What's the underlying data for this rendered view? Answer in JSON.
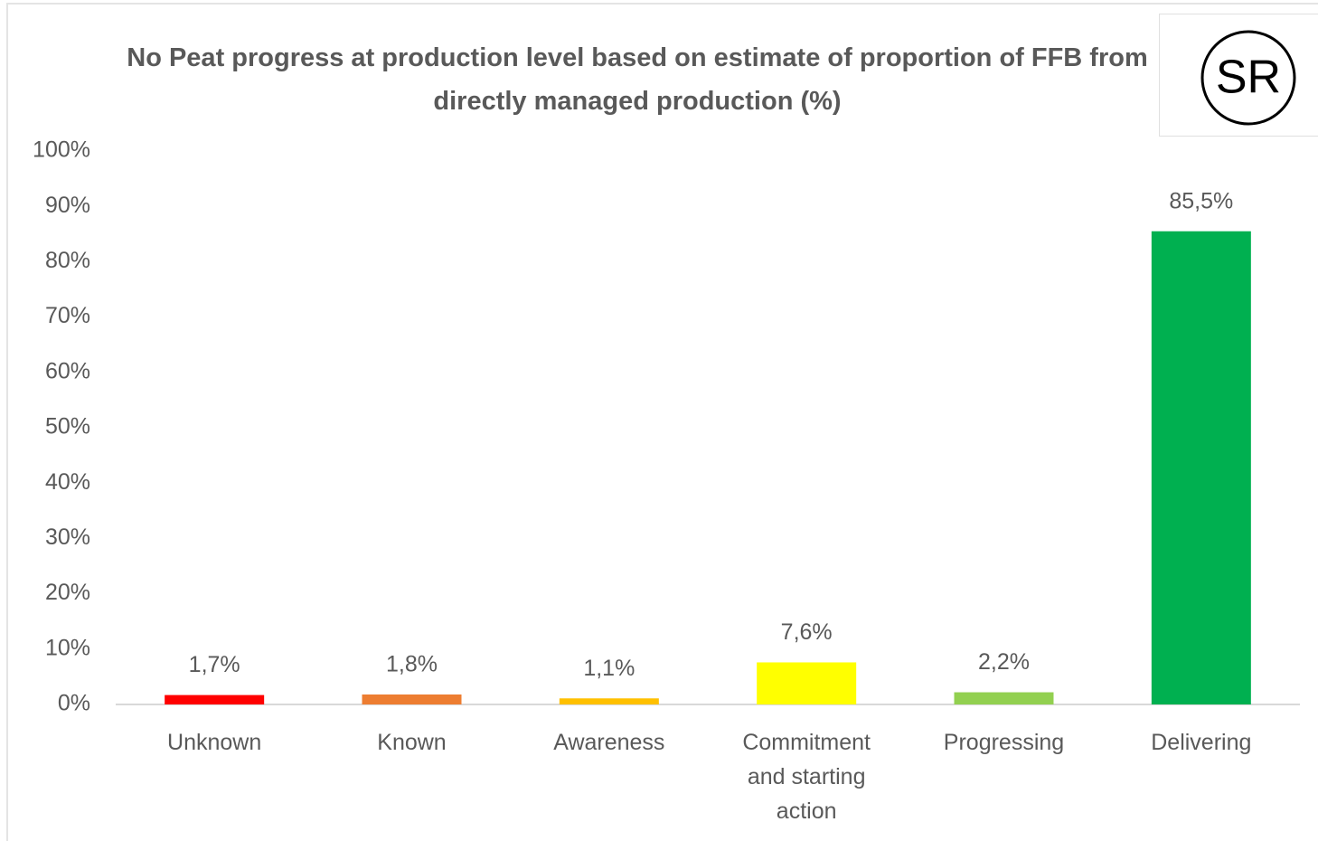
{
  "chart_data": {
    "type": "bar",
    "title": "No Peat progress at production level based on estimate of proportion of FFB from directly managed production (%)",
    "badge": "SR",
    "categories": [
      "Unknown",
      "Known",
      "Awareness",
      "Commitment and starting action",
      "Progressing",
      "Delivering"
    ],
    "values": [
      1.7,
      1.8,
      1.1,
      7.6,
      2.2,
      85.5
    ],
    "value_labels": [
      "1,7%",
      "1,8%",
      "1,1%",
      "7,6%",
      "2,2%",
      "85,5%"
    ],
    "colors": [
      "#ff0000",
      "#ed7d31",
      "#ffc000",
      "#ffff00",
      "#92d050",
      "#00b050"
    ],
    "ylim": [
      0,
      100
    ],
    "yticks": [
      {
        "value": 0,
        "label": "0%"
      },
      {
        "value": 10,
        "label": "10%"
      },
      {
        "value": 20,
        "label": "20%"
      },
      {
        "value": 30,
        "label": "30%"
      },
      {
        "value": 40,
        "label": "40%"
      },
      {
        "value": 50,
        "label": "50%"
      },
      {
        "value": 60,
        "label": "60%"
      },
      {
        "value": 70,
        "label": "70%"
      },
      {
        "value": 80,
        "label": "80%"
      },
      {
        "value": 90,
        "label": "90%"
      },
      {
        "value": 100,
        "label": "100%"
      }
    ],
    "grid": false
  }
}
